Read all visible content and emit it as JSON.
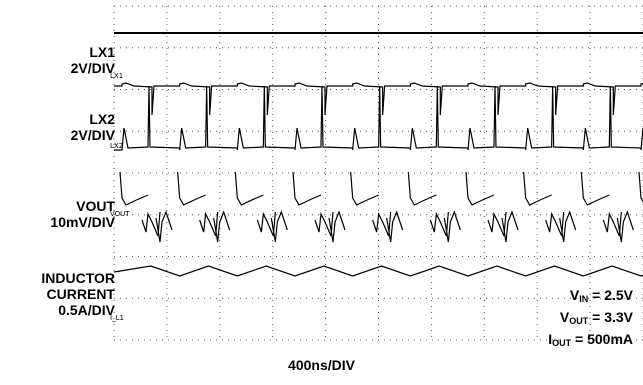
{
  "chart_data": {
    "type": "line",
    "title": "",
    "channels": [
      {
        "name": "LX1",
        "label": "LX1",
        "scale": "2V/DIV",
        "tag": "LX1"
      },
      {
        "name": "LX2",
        "label": "LX2",
        "scale": "2V/DIV",
        "tag": "LX2"
      },
      {
        "name": "VOUT",
        "label": "VOUT",
        "scale": "10mV/DIV",
        "tag": "VOUT"
      },
      {
        "name": "INDUCTOR CURRENT",
        "label_lines": [
          "INDUCTOR",
          "CURRENT"
        ],
        "scale": "0.5A/DIV",
        "tag": "I_L1"
      }
    ],
    "conditions": [
      {
        "sym": "V",
        "sub": "IN",
        "value": " = 2.5V"
      },
      {
        "sym": "V",
        "sub": "OUT",
        "value": " = 3.3V"
      },
      {
        "sym": "I",
        "sub": "OUT",
        "value": " = 500mA"
      }
    ],
    "xlabel": "400ns/DIV",
    "time_per_div_ns": 400,
    "switching_cycles_visible": 9,
    "grid": true,
    "line_color": "#000000"
  }
}
